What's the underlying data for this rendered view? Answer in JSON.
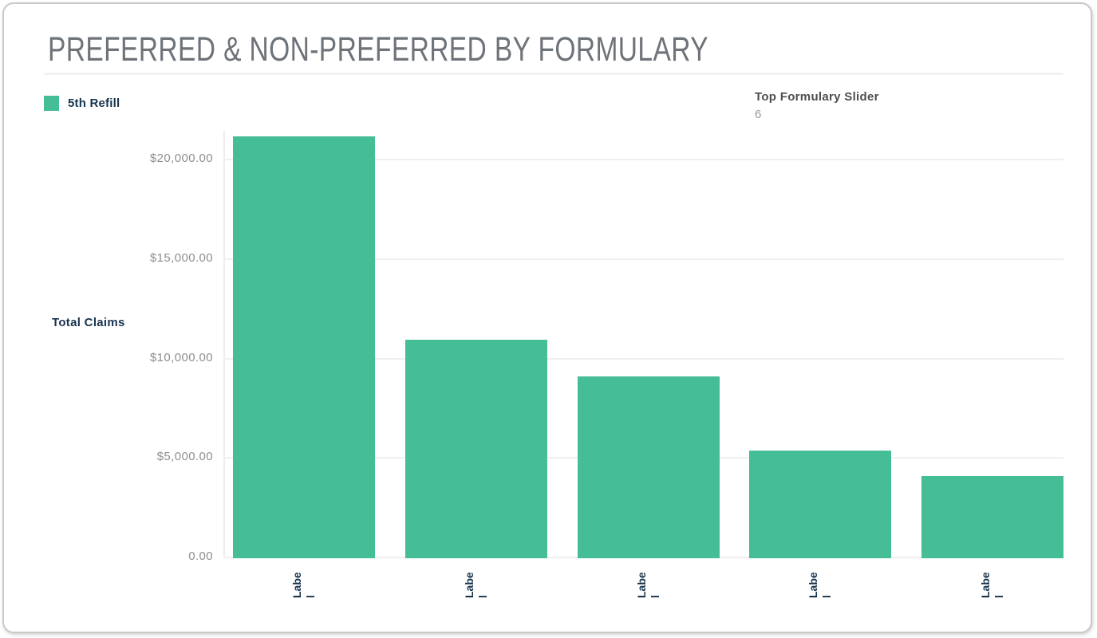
{
  "header": {
    "title": "PREFERRED & NON-PREFERRED BY FORMULARY"
  },
  "slider": {
    "label": "Top Formulary Slider",
    "value": "6"
  },
  "colors": {
    "bar_green": "#45bd96",
    "navy_text": "#17334d",
    "axis_label_gray": "#8e8e8e",
    "title_gray": "#6e737a",
    "gridline": "#efefef"
  },
  "chart_data": {
    "type": "bar",
    "bar_orientation": "vertical",
    "title": "PREFERRED & NON-PREFERRED BY FORMULARY",
    "ylabel": "Total Claims",
    "xlabel": "",
    "categories": [
      "Label",
      "Label",
      "Label",
      "Label",
      "Label"
    ],
    "category_label_lines": [
      [
        "Labe",
        "l"
      ],
      [
        "Labe",
        "l"
      ],
      [
        "Labe",
        "l"
      ],
      [
        "Labe",
        "l"
      ],
      [
        "Labe",
        "l"
      ]
    ],
    "series": [
      {
        "name": "5th Refill",
        "color": "#45bd96",
        "values": [
          21200,
          11000,
          9150,
          5400,
          4150
        ]
      }
    ],
    "y_ticks": [
      {
        "value": 0,
        "label": "0.00"
      },
      {
        "value": 5000,
        "label": "$5,000.00"
      },
      {
        "value": 10000,
        "label": "$10,000.00"
      },
      {
        "value": 15000,
        "label": "$15,000.00"
      },
      {
        "value": 20000,
        "label": "$20,000.00"
      }
    ],
    "ylim": [
      0,
      21500
    ],
    "grid": true,
    "legend_position": "top-left"
  }
}
